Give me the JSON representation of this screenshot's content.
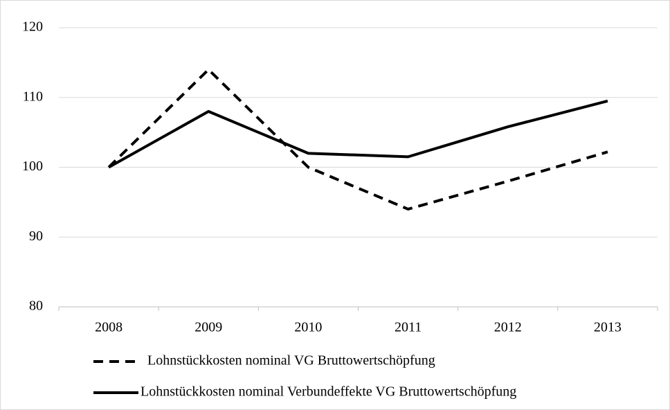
{
  "chart_data": {
    "type": "line",
    "categories": [
      "2008",
      "2009",
      "2010",
      "2011",
      "2012",
      "2013"
    ],
    "series": [
      {
        "name": "Lohnstückkosten nominal VG Bruttowertschöpfung",
        "color": "#000000",
        "dashed": true,
        "values": [
          100,
          114,
          100,
          94,
          98,
          102.2
        ]
      },
      {
        "name": "Lohnstückkosten nominal Verbundeffekte VG Bruttowertschöpfung",
        "color": "#000000",
        "dashed": false,
        "values": [
          100,
          108,
          102,
          101.5,
          105.8,
          109.5
        ]
      }
    ],
    "ylim": [
      80,
      120
    ],
    "yticks": [
      80,
      90,
      100,
      110,
      120
    ],
    "grid": true,
    "legend": "bottom"
  }
}
